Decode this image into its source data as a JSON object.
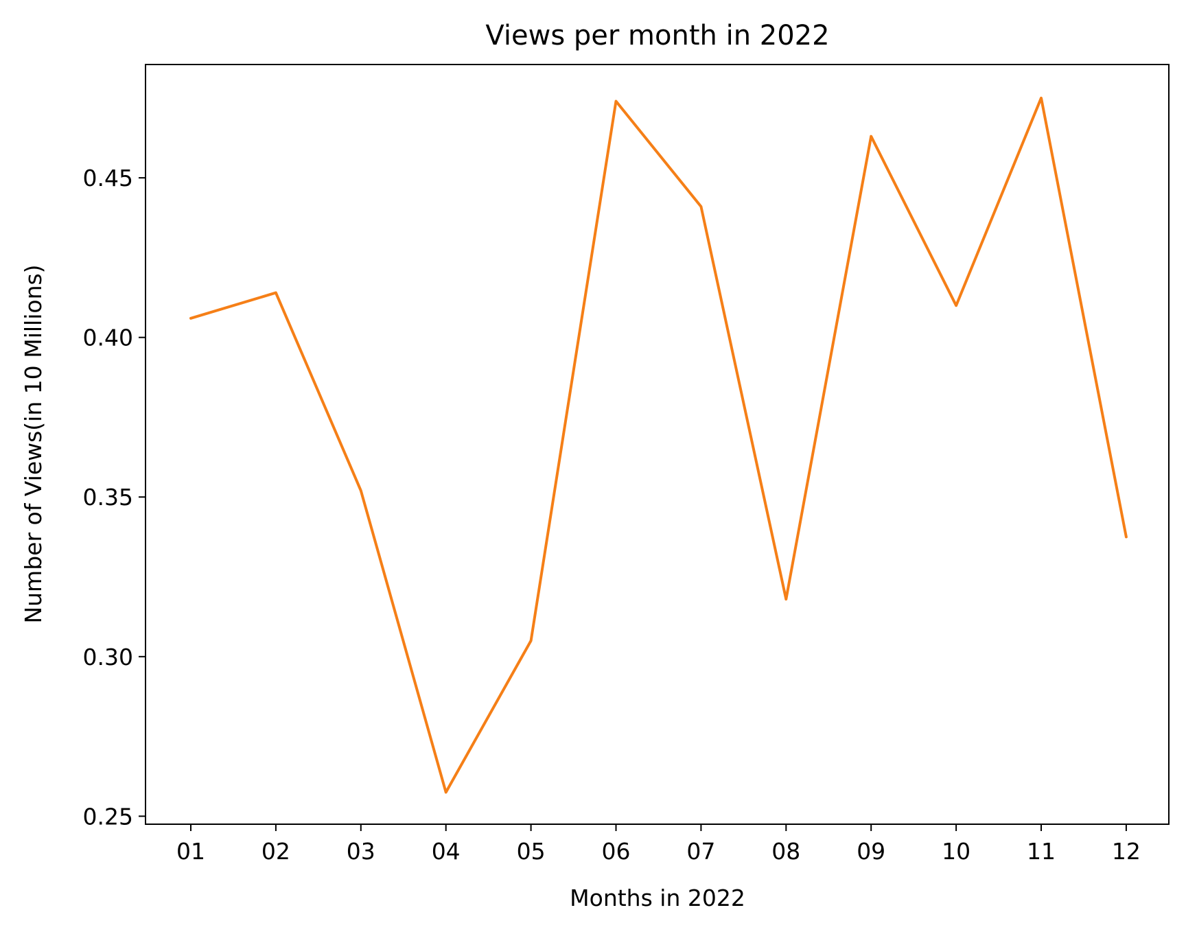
{
  "chart_data": {
    "type": "line",
    "title": "Views per month in 2022",
    "xlabel": "Months in 2022",
    "ylabel": "Number of Views(in 10 Millions)",
    "categories": [
      "01",
      "02",
      "03",
      "04",
      "05",
      "06",
      "07",
      "08",
      "09",
      "10",
      "11",
      "12"
    ],
    "series": [
      {
        "values": [
          0.406,
          0.414,
          0.352,
          0.2575,
          0.305,
          0.474,
          0.441,
          0.318,
          0.463,
          0.41,
          0.475,
          0.3375
        ],
        "color": "#f57f17"
      }
    ],
    "ylim": [
      0.2475,
      0.4855
    ],
    "yticks": [
      0.25,
      0.3,
      0.35,
      0.4,
      0.45
    ],
    "ytick_labels": [
      "0.25",
      "0.30",
      "0.35",
      "0.40",
      "0.45"
    ],
    "grid": false,
    "legend": "none"
  }
}
